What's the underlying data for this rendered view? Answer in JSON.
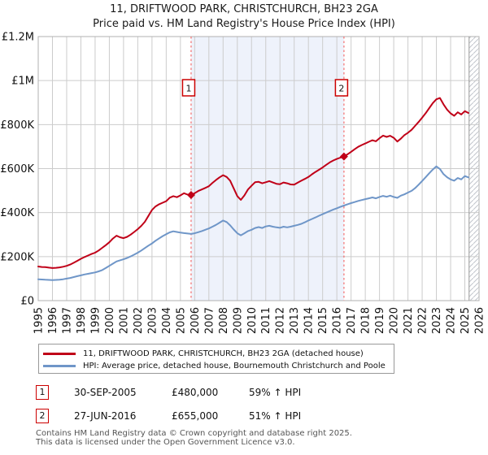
{
  "title": {
    "line1": "11, DRIFTWOOD PARK, CHRISTCHURCH, BH23 2GA",
    "line2": "Price paid vs. HM Land Registry's House Price Index (HPI)"
  },
  "colors": {
    "property_line": "#c00018",
    "hpi_line": "#6f96c8",
    "sale_vline": "#f46e6e",
    "shade": "#eef2fb",
    "grid": "#cccccc",
    "plot_border": "#b0b0b0",
    "hatch": "#c2c6cc",
    "flag_border": "#cc0000",
    "footer_text": "#555555"
  },
  "chart_data": {
    "type": "line",
    "title": "11, DRIFTWOOD PARK, CHRISTCHURCH, BH23 2GA — Price paid vs. HM Land Registry's House Price Index (HPI)",
    "x_axis": {
      "min": 1995,
      "max": 2026,
      "tick_labels": [
        "1995",
        "1996",
        "1997",
        "1998",
        "1999",
        "2000",
        "2001",
        "2002",
        "2003",
        "2004",
        "2005",
        "2006",
        "2007",
        "2008",
        "2009",
        "2010",
        "2011",
        "2012",
        "2013",
        "2014",
        "2015",
        "2016",
        "2017",
        "2018",
        "2019",
        "2020",
        "2021",
        "2022",
        "2023",
        "2024",
        "2025",
        "2026"
      ]
    },
    "y_axis": {
      "min_k": 0,
      "max_k": 1200,
      "tick_step_k": 200,
      "tick_labels": [
        "£0",
        "£200K",
        "£400K",
        "£600K",
        "£800K",
        "£1M",
        "£1.2M"
      ],
      "values_unit": "GBP thousands"
    },
    "grid": true,
    "legend_position": "bottom",
    "shaded_span": {
      "from": 2005.75,
      "to": 2016.5
    },
    "hatched_span": {
      "from": 2025.3,
      "to": 2026
    },
    "markers": [
      {
        "label": "1",
        "x": 2005.75,
        "y_k": 480
      },
      {
        "label": "2",
        "x": 2016.5,
        "y_k": 655
      }
    ],
    "series": [
      {
        "name": "11, DRIFTWOOD PARK, CHRISTCHURCH, BH23 2GA (detached house)",
        "color": "#c00018",
        "points": [
          [
            1995.0,
            155
          ],
          [
            1995.25,
            153
          ],
          [
            1995.5,
            152
          ],
          [
            1995.75,
            150
          ],
          [
            1996.0,
            148
          ],
          [
            1996.25,
            149
          ],
          [
            1996.5,
            151
          ],
          [
            1996.75,
            154
          ],
          [
            1997.0,
            158
          ],
          [
            1997.25,
            164
          ],
          [
            1997.5,
            172
          ],
          [
            1997.75,
            181
          ],
          [
            1998.0,
            190
          ],
          [
            1998.25,
            198
          ],
          [
            1998.5,
            205
          ],
          [
            1998.75,
            212
          ],
          [
            1999.0,
            218
          ],
          [
            1999.25,
            228
          ],
          [
            1999.5,
            240
          ],
          [
            1999.75,
            252
          ],
          [
            2000.0,
            265
          ],
          [
            2000.25,
            282
          ],
          [
            2000.5,
            295
          ],
          [
            2000.75,
            288
          ],
          [
            2001.0,
            284
          ],
          [
            2001.25,
            290
          ],
          [
            2001.5,
            300
          ],
          [
            2001.75,
            312
          ],
          [
            2002.0,
            325
          ],
          [
            2002.25,
            340
          ],
          [
            2002.5,
            358
          ],
          [
            2002.75,
            385
          ],
          [
            2003.0,
            412
          ],
          [
            2003.25,
            428
          ],
          [
            2003.5,
            438
          ],
          [
            2003.75,
            445
          ],
          [
            2004.0,
            452
          ],
          [
            2004.25,
            468
          ],
          [
            2004.5,
            475
          ],
          [
            2004.75,
            470
          ],
          [
            2005.0,
            478
          ],
          [
            2005.25,
            488
          ],
          [
            2005.5,
            482
          ],
          [
            2005.75,
            480
          ],
          [
            2006.0,
            488
          ],
          [
            2006.25,
            498
          ],
          [
            2006.5,
            505
          ],
          [
            2006.75,
            512
          ],
          [
            2007.0,
            520
          ],
          [
            2007.25,
            535
          ],
          [
            2007.5,
            548
          ],
          [
            2007.75,
            560
          ],
          [
            2008.0,
            570
          ],
          [
            2008.25,
            562
          ],
          [
            2008.5,
            545
          ],
          [
            2008.75,
            510
          ],
          [
            2009.0,
            475
          ],
          [
            2009.25,
            458
          ],
          [
            2009.5,
            478
          ],
          [
            2009.75,
            505
          ],
          [
            2010.0,
            522
          ],
          [
            2010.25,
            538
          ],
          [
            2010.5,
            540
          ],
          [
            2010.75,
            533
          ],
          [
            2011.0,
            538
          ],
          [
            2011.25,
            543
          ],
          [
            2011.5,
            537
          ],
          [
            2011.75,
            531
          ],
          [
            2012.0,
            529
          ],
          [
            2012.25,
            537
          ],
          [
            2012.5,
            533
          ],
          [
            2012.75,
            528
          ],
          [
            2013.0,
            527
          ],
          [
            2013.25,
            536
          ],
          [
            2013.5,
            545
          ],
          [
            2013.75,
            553
          ],
          [
            2014.0,
            562
          ],
          [
            2014.25,
            574
          ],
          [
            2014.5,
            585
          ],
          [
            2014.75,
            595
          ],
          [
            2015.0,
            605
          ],
          [
            2015.25,
            617
          ],
          [
            2015.5,
            628
          ],
          [
            2015.75,
            637
          ],
          [
            2016.0,
            644
          ],
          [
            2016.25,
            650
          ],
          [
            2016.5,
            655
          ],
          [
            2016.75,
            665
          ],
          [
            2017.0,
            676
          ],
          [
            2017.25,
            688
          ],
          [
            2017.5,
            699
          ],
          [
            2017.75,
            707
          ],
          [
            2018.0,
            714
          ],
          [
            2018.25,
            722
          ],
          [
            2018.5,
            729
          ],
          [
            2018.75,
            724
          ],
          [
            2019.0,
            738
          ],
          [
            2019.25,
            750
          ],
          [
            2019.5,
            744
          ],
          [
            2019.75,
            749
          ],
          [
            2020.0,
            740
          ],
          [
            2020.25,
            723
          ],
          [
            2020.5,
            736
          ],
          [
            2020.75,
            752
          ],
          [
            2021.0,
            763
          ],
          [
            2021.25,
            776
          ],
          [
            2021.5,
            794
          ],
          [
            2021.75,
            812
          ],
          [
            2022.0,
            832
          ],
          [
            2022.25,
            852
          ],
          [
            2022.5,
            875
          ],
          [
            2022.75,
            898
          ],
          [
            2023.0,
            915
          ],
          [
            2023.25,
            921
          ],
          [
            2023.5,
            892
          ],
          [
            2023.75,
            868
          ],
          [
            2024.0,
            851
          ],
          [
            2024.25,
            840
          ],
          [
            2024.5,
            856
          ],
          [
            2024.75,
            846
          ],
          [
            2025.0,
            861
          ],
          [
            2025.25,
            853
          ]
        ]
      },
      {
        "name": "HPI: Average price, detached house, Bournemouth Christchurch and Poole",
        "color": "#6f96c8",
        "points": [
          [
            1995.0,
            97
          ],
          [
            1995.25,
            96
          ],
          [
            1995.5,
            95
          ],
          [
            1995.75,
            94
          ],
          [
            1996.0,
            93
          ],
          [
            1996.25,
            94
          ],
          [
            1996.5,
            95
          ],
          [
            1996.75,
            97
          ],
          [
            1997.0,
            100
          ],
          [
            1997.25,
            103
          ],
          [
            1997.5,
            107
          ],
          [
            1997.75,
            111
          ],
          [
            1998.0,
            115
          ],
          [
            1998.25,
            119
          ],
          [
            1998.5,
            122
          ],
          [
            1998.75,
            125
          ],
          [
            1999.0,
            128
          ],
          [
            1999.25,
            133
          ],
          [
            1999.5,
            139
          ],
          [
            1999.75,
            148
          ],
          [
            2000.0,
            158
          ],
          [
            2000.25,
            168
          ],
          [
            2000.5,
            178
          ],
          [
            2000.75,
            183
          ],
          [
            2001.0,
            188
          ],
          [
            2001.25,
            194
          ],
          [
            2001.5,
            201
          ],
          [
            2001.75,
            209
          ],
          [
            2002.0,
            218
          ],
          [
            2002.25,
            228
          ],
          [
            2002.5,
            239
          ],
          [
            2002.75,
            250
          ],
          [
            2003.0,
            260
          ],
          [
            2003.25,
            272
          ],
          [
            2003.5,
            283
          ],
          [
            2003.75,
            293
          ],
          [
            2004.0,
            302
          ],
          [
            2004.25,
            310
          ],
          [
            2004.5,
            315
          ],
          [
            2004.75,
            312
          ],
          [
            2005.0,
            309
          ],
          [
            2005.25,
            307
          ],
          [
            2005.5,
            305
          ],
          [
            2005.75,
            303
          ],
          [
            2006.0,
            306
          ],
          [
            2006.25,
            311
          ],
          [
            2006.5,
            316
          ],
          [
            2006.75,
            322
          ],
          [
            2007.0,
            328
          ],
          [
            2007.25,
            336
          ],
          [
            2007.5,
            344
          ],
          [
            2007.75,
            354
          ],
          [
            2008.0,
            364
          ],
          [
            2008.25,
            357
          ],
          [
            2008.5,
            342
          ],
          [
            2008.75,
            323
          ],
          [
            2009.0,
            306
          ],
          [
            2009.25,
            297
          ],
          [
            2009.5,
            306
          ],
          [
            2009.75,
            316
          ],
          [
            2010.0,
            322
          ],
          [
            2010.25,
            330
          ],
          [
            2010.5,
            334
          ],
          [
            2010.75,
            330
          ],
          [
            2011.0,
            337
          ],
          [
            2011.25,
            340
          ],
          [
            2011.5,
            336
          ],
          [
            2011.75,
            333
          ],
          [
            2012.0,
            331
          ],
          [
            2012.25,
            336
          ],
          [
            2012.5,
            333
          ],
          [
            2012.75,
            336
          ],
          [
            2013.0,
            340
          ],
          [
            2013.25,
            344
          ],
          [
            2013.5,
            349
          ],
          [
            2013.75,
            356
          ],
          [
            2014.0,
            364
          ],
          [
            2014.25,
            371
          ],
          [
            2014.5,
            378
          ],
          [
            2014.75,
            386
          ],
          [
            2015.0,
            393
          ],
          [
            2015.25,
            400
          ],
          [
            2015.5,
            407
          ],
          [
            2015.75,
            414
          ],
          [
            2016.0,
            420
          ],
          [
            2016.25,
            426
          ],
          [
            2016.5,
            432
          ],
          [
            2016.75,
            438
          ],
          [
            2017.0,
            443
          ],
          [
            2017.25,
            448
          ],
          [
            2017.5,
            453
          ],
          [
            2017.75,
            457
          ],
          [
            2018.0,
            461
          ],
          [
            2018.25,
            465
          ],
          [
            2018.5,
            469
          ],
          [
            2018.75,
            465
          ],
          [
            2019.0,
            471
          ],
          [
            2019.25,
            476
          ],
          [
            2019.5,
            472
          ],
          [
            2019.75,
            477
          ],
          [
            2020.0,
            471
          ],
          [
            2020.25,
            467
          ],
          [
            2020.5,
            477
          ],
          [
            2020.75,
            483
          ],
          [
            2021.0,
            491
          ],
          [
            2021.25,
            499
          ],
          [
            2021.5,
            511
          ],
          [
            2021.75,
            527
          ],
          [
            2022.0,
            544
          ],
          [
            2022.25,
            561
          ],
          [
            2022.5,
            579
          ],
          [
            2022.75,
            596
          ],
          [
            2023.0,
            610
          ],
          [
            2023.25,
            598
          ],
          [
            2023.5,
            575
          ],
          [
            2023.75,
            561
          ],
          [
            2024.0,
            551
          ],
          [
            2024.25,
            545
          ],
          [
            2024.5,
            557
          ],
          [
            2024.75,
            551
          ],
          [
            2025.0,
            566
          ],
          [
            2025.25,
            560
          ]
        ]
      }
    ]
  },
  "legend": {
    "entries": [
      {
        "label": "11, DRIFTWOOD PARK, CHRISTCHURCH, BH23 2GA (detached house)",
        "color": "#c00018"
      },
      {
        "label": "HPI: Average price, detached house, Bournemouth Christchurch and Poole",
        "color": "#6f96c8"
      }
    ]
  },
  "annotations": [
    {
      "num": "1",
      "date": "30-SEP-2005",
      "price": "£480,000",
      "hpi": "59% ↑ HPI"
    },
    {
      "num": "2",
      "date": "27-JUN-2016",
      "price": "£655,000",
      "hpi": "51% ↑ HPI"
    }
  ],
  "footer": {
    "line1": "Contains HM Land Registry data © Crown copyright and database right 2025.",
    "line2": "This data is licensed under the Open Government Licence v3.0."
  }
}
